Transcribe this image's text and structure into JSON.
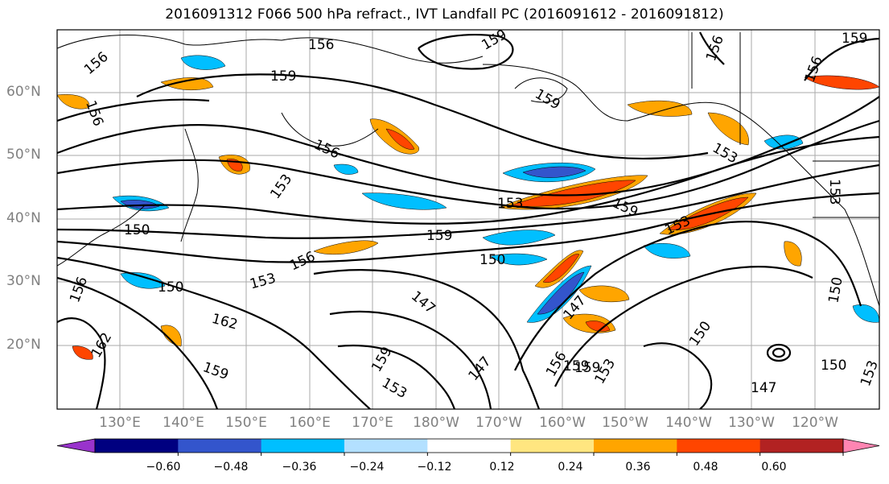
{
  "title": "2016091312 F066 500 hPa refract., IVT Landfall PC (2016091612 - 2016091812)",
  "lat_labels": [
    "60°N",
    "50°N",
    "40°N",
    "30°N",
    "20°N"
  ],
  "lon_labels": [
    "130°E",
    "140°E",
    "150°E",
    "160°E",
    "170°E",
    "180°W",
    "170°W",
    "160°W",
    "150°W",
    "140°W",
    "130°W",
    "120°W"
  ],
  "colorbar": {
    "ticks": [
      "−0.60",
      "−0.48",
      "−0.36",
      "−0.24",
      "−0.12",
      "0.12",
      "0.24",
      "0.36",
      "0.48",
      "0.60"
    ],
    "colors": [
      "#9933cc",
      "#000080",
      "#3355cc",
      "#00bfff",
      "#b3e0ff",
      "#ffffff",
      "#ffe680",
      "#ffa500",
      "#ff4500",
      "#b22222",
      "#ff85b2"
    ]
  },
  "contour_labels": [
    "156",
    "159",
    "156",
    "156",
    "156",
    "153",
    "153",
    "159",
    "153",
    "159",
    "159",
    "153",
    "159",
    "156",
    "150",
    "150",
    "153",
    "156",
    "150",
    "162",
    "159",
    "150",
    "162",
    "159",
    "147",
    "159",
    "153",
    "147",
    "147",
    "156",
    "159",
    "153",
    "150",
    "150",
    "153",
    "147",
    "156",
    "153",
    "159",
    "156"
  ],
  "colors": {
    "land_line": "#000000",
    "grid": "#999999",
    "tick_text": "#808080"
  }
}
